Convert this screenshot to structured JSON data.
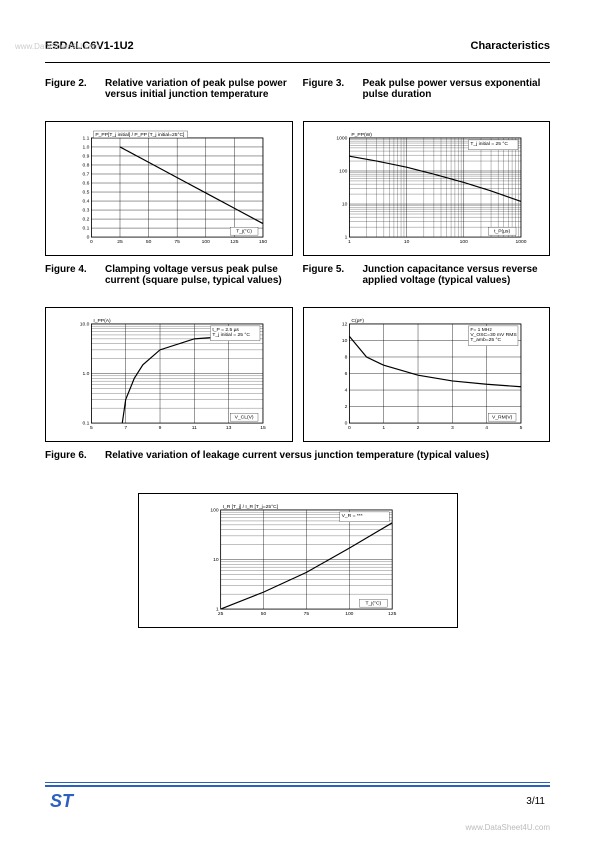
{
  "watermark_top": "www.DataSheet4U.com",
  "header": {
    "left": "ESDALC6V1-1U2",
    "right": "Characteristics"
  },
  "fig2": {
    "num": "Figure 2.",
    "caption": "Relative variation of peak pulse power versus initial junction temperature",
    "type": "line",
    "ylabel_box": "P_PP[T_j initial] / P_PP [T_j initial=25°C]",
    "xlabel_box": "T_j(°C)",
    "xlim": [
      0,
      150
    ],
    "xtick_step": 25,
    "ylim": [
      0,
      1.1
    ],
    "ytick_step": 0.1,
    "xticks": [
      "0",
      "25",
      "50",
      "75",
      "100",
      "125",
      "150"
    ],
    "yticks": [
      "0",
      "0.1",
      "0.2",
      "0.3",
      "0.4",
      "0.5",
      "0.6",
      "0.7",
      "0.8",
      "0.9",
      "1.0",
      "1.1"
    ],
    "series": [
      {
        "points": [
          [
            25,
            1.0
          ],
          [
            50,
            0.83
          ],
          [
            75,
            0.66
          ],
          [
            100,
            0.49
          ],
          [
            125,
            0.32
          ],
          [
            150,
            0.15
          ]
        ],
        "color": "#000",
        "width": 1.2
      }
    ],
    "grid_color": "#000",
    "bg": "#fff"
  },
  "fig3": {
    "num": "Figure 3.",
    "caption": "Peak pulse power versus exponential pulse duration",
    "type": "loglog",
    "ylabel_text": "P_PP(W)",
    "xlabel_box": "t_P(µs)",
    "cond_box": "T_j initial = 25 °C",
    "xlim": [
      1,
      1000
    ],
    "ylim": [
      1,
      1000
    ],
    "xticks": [
      "1",
      "10",
      "100",
      "1000"
    ],
    "yticks": [
      "1",
      "10",
      "100",
      "1000"
    ],
    "series": [
      {
        "points": [
          [
            1,
            280
          ],
          [
            3,
            200
          ],
          [
            10,
            130
          ],
          [
            30,
            80
          ],
          [
            100,
            45
          ],
          [
            300,
            25
          ],
          [
            1000,
            12
          ]
        ],
        "color": "#000",
        "width": 1.2
      }
    ],
    "grid_color": "#000",
    "bg": "#fff"
  },
  "fig4": {
    "num": "Figure 4.",
    "caption": "Clamping voltage versus peak pulse current (square pulse, typical values)",
    "type": "semilogy",
    "ylabel_text": "I_PP(A)",
    "xlabel_box": "V_CL(V)",
    "cond_box": "t_P = 2.5 µs\nT_j initial = 25 °C",
    "xlim": [
      5,
      15
    ],
    "xtick_step": 2,
    "ylim": [
      0.1,
      10
    ],
    "xticks": [
      "5",
      "7",
      "9",
      "11",
      "13",
      "15"
    ],
    "yticks": [
      "0.1",
      "1.0",
      "10.0"
    ],
    "series": [
      {
        "points": [
          [
            6.8,
            0.1
          ],
          [
            7.0,
            0.3
          ],
          [
            7.5,
            0.8
          ],
          [
            8,
            1.5
          ],
          [
            9,
            3
          ],
          [
            11,
            5
          ],
          [
            14,
            6
          ]
        ],
        "color": "#000",
        "width": 1.2
      }
    ],
    "grid_color": "#000",
    "bg": "#fff"
  },
  "fig5": {
    "num": "Figure 5.",
    "caption": "Junction capacitance versus reverse applied voltage (typical values)",
    "type": "line",
    "ylabel_text": "C(pF)",
    "xlabel_box": "V_RM(V)",
    "cond_box": "F= 1 MHz\nV_OSC=30 mV RMS\nT_amb=25 °C",
    "xlim": [
      0,
      5
    ],
    "xtick_step": 1,
    "ylim": [
      0,
      12
    ],
    "ytick_step": 2,
    "xticks": [
      "0",
      "1",
      "2",
      "3",
      "4",
      "5"
    ],
    "yticks": [
      "0",
      "2",
      "4",
      "6",
      "8",
      "10",
      "12"
    ],
    "series": [
      {
        "points": [
          [
            0,
            10.5
          ],
          [
            0.5,
            8
          ],
          [
            1,
            7
          ],
          [
            2,
            5.8
          ],
          [
            3,
            5.1
          ],
          [
            4,
            4.7
          ],
          [
            5,
            4.4
          ]
        ],
        "color": "#000",
        "width": 1.2
      }
    ],
    "grid_color": "#000",
    "bg": "#fff"
  },
  "fig6": {
    "num": "Figure 6.",
    "caption": "Relative variation of leakage current versus junction temperature (typical values)",
    "type": "semilogy",
    "ylabel_text": "I_R [T_j] / I_R [T_j=25°C]",
    "xlabel_box": "T_j(°C)",
    "cond_box": "V_R = ***",
    "xlim": [
      25,
      125
    ],
    "xtick_step": 25,
    "ylim": [
      1,
      100
    ],
    "xticks": [
      "25",
      "50",
      "75",
      "100",
      "125"
    ],
    "yticks": [
      "1",
      "10",
      "100"
    ],
    "series": [
      {
        "points": [
          [
            25,
            1
          ],
          [
            50,
            2.2
          ],
          [
            75,
            5.5
          ],
          [
            100,
            17
          ],
          [
            125,
            55
          ]
        ],
        "color": "#000",
        "width": 1.2
      }
    ],
    "grid_color": "#000",
    "bg": "#fff"
  },
  "footer": {
    "logo": "ST",
    "page": "3/11",
    "watermark": "www.DataSheet4U.com"
  }
}
